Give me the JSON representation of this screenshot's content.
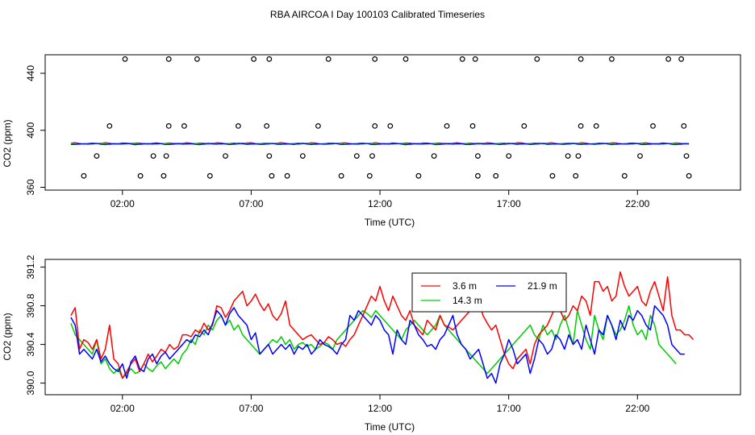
{
  "title": "RBA AIRCOA I  Day 100103  Calibrated Timeseries",
  "colors": {
    "red": "#ff0000",
    "green": "#00cc00",
    "blue": "#0000ff",
    "axis": "#000000"
  },
  "chart_data": [
    {
      "type": "scatter",
      "ylabel": "CO2 (ppm)",
      "xlabel": "Time (UTC)",
      "xlim": [
        -1.0,
        26.0
      ],
      "ylim": [
        358,
        453
      ],
      "xticks": [
        2,
        7,
        12,
        17,
        22
      ],
      "xtick_labels": [
        "02:00",
        "07:00",
        "12:00",
        "17:00",
        "22:00"
      ],
      "yticks": [
        360,
        400,
        440
      ],
      "ytick_labels": [
        "360",
        "400",
        "440"
      ],
      "circles": [
        [
          0.5,
          368
        ],
        [
          1.0,
          382
        ],
        [
          1.5,
          403
        ],
        [
          2.1,
          450
        ],
        [
          2.7,
          368
        ],
        [
          3.2,
          382
        ],
        [
          3.6,
          368
        ],
        [
          3.7,
          382
        ],
        [
          3.8,
          403
        ],
        [
          3.8,
          450
        ],
        [
          4.4,
          403
        ],
        [
          4.9,
          450
        ],
        [
          5.4,
          368
        ],
        [
          6.0,
          382
        ],
        [
          6.5,
          403
        ],
        [
          7.1,
          450
        ],
        [
          7.6,
          403
        ],
        [
          7.7,
          450
        ],
        [
          7.7,
          382
        ],
        [
          7.8,
          368
        ],
        [
          8.4,
          368
        ],
        [
          9.0,
          382
        ],
        [
          9.6,
          403
        ],
        [
          10.0,
          450
        ],
        [
          10.5,
          368
        ],
        [
          11.1,
          382
        ],
        [
          11.6,
          368
        ],
        [
          11.7,
          382
        ],
        [
          11.8,
          403
        ],
        [
          11.8,
          450
        ],
        [
          12.4,
          403
        ],
        [
          13.0,
          450
        ],
        [
          13.5,
          368
        ],
        [
          14.1,
          382
        ],
        [
          14.6,
          403
        ],
        [
          15.2,
          450
        ],
        [
          15.6,
          403
        ],
        [
          15.7,
          450
        ],
        [
          15.8,
          382
        ],
        [
          15.8,
          368
        ],
        [
          16.5,
          368
        ],
        [
          17.0,
          382
        ],
        [
          17.6,
          403
        ],
        [
          18.1,
          450
        ],
        [
          18.7,
          368
        ],
        [
          19.3,
          382
        ],
        [
          19.6,
          368
        ],
        [
          19.7,
          382
        ],
        [
          19.8,
          403
        ],
        [
          19.8,
          450
        ],
        [
          20.4,
          403
        ],
        [
          21.0,
          450
        ],
        [
          21.5,
          368
        ],
        [
          22.1,
          382
        ],
        [
          22.6,
          403
        ],
        [
          23.2,
          450
        ],
        [
          23.7,
          450
        ],
        [
          23.8,
          403
        ],
        [
          23.9,
          382
        ],
        [
          24.0,
          368
        ]
      ],
      "series": [
        {
          "name": "3.6 m",
          "color": "#ff0000",
          "level": 390.8
        },
        {
          "name": "14.3 m",
          "color": "#00cc00",
          "level": 390.5
        },
        {
          "name": "21.9 m",
          "color": "#0000ff",
          "level": 390.4
        }
      ]
    },
    {
      "type": "line",
      "ylabel": "CO2 (ppm)",
      "xlabel": "Time (UTC)",
      "xlim": [
        -1.0,
        26.0
      ],
      "ylim": [
        389.88,
        391.28
      ],
      "xticks": [
        2,
        7,
        12,
        17,
        22
      ],
      "xtick_labels": [
        "02:00",
        "07:00",
        "12:00",
        "17:00",
        "22:00"
      ],
      "yticks": [
        390.0,
        390.4,
        390.8,
        391.2
      ],
      "ytick_labels": [
        "390.0",
        "390.4",
        "390.8",
        "391.2"
      ],
      "x_start": 0,
      "x_step": 0.16667,
      "legend": {
        "position": "top-center",
        "entries": [
          "3.6 m",
          "21.9 m",
          "14.3 m"
        ]
      },
      "series": [
        {
          "name": "3.6 m",
          "color": "#ff0000",
          "values": [
            390.7,
            390.78,
            390.35,
            390.45,
            390.42,
            390.35,
            390.45,
            390.25,
            390.35,
            390.6,
            390.25,
            390.2,
            390.05,
            390.12,
            390.2,
            390.25,
            390.12,
            390.2,
            390.3,
            390.22,
            390.28,
            390.35,
            390.32,
            390.4,
            390.35,
            390.38,
            390.5,
            390.5,
            390.48,
            390.55,
            390.52,
            390.62,
            390.55,
            390.6,
            390.8,
            390.78,
            390.68,
            390.75,
            390.85,
            390.9,
            390.95,
            390.8,
            390.85,
            390.92,
            390.82,
            390.75,
            390.82,
            390.7,
            390.65,
            390.72,
            390.85,
            390.6,
            390.55,
            390.5,
            390.45,
            390.48,
            390.5,
            390.45,
            390.4,
            390.42,
            390.48,
            390.45,
            390.4,
            390.42,
            390.38,
            390.45,
            390.5,
            390.6,
            390.7,
            390.8,
            390.9,
            390.85,
            391.0,
            390.85,
            390.75,
            390.9,
            390.8,
            390.7,
            390.65,
            390.75,
            390.6,
            390.55,
            390.5,
            390.65,
            390.6,
            390.55,
            390.7,
            390.6,
            390.58,
            390.55,
            390.6,
            390.65,
            390.7,
            390.75,
            390.9,
            390.85,
            390.7,
            390.62,
            390.55,
            390.6,
            390.45,
            390.3,
            390.2,
            390.15,
            390.25,
            390.3,
            390.35,
            390.2,
            390.4,
            390.5,
            390.55,
            390.6,
            390.7,
            390.8,
            390.75,
            390.65,
            390.7,
            390.8,
            390.75,
            390.9,
            390.85,
            390.7,
            391.05,
            391.05,
            390.95,
            391.0,
            390.85,
            390.9,
            391.15,
            391.0,
            390.9,
            390.95,
            391.0,
            390.85,
            390.8,
            390.95,
            391.05,
            390.9,
            390.75,
            391.1,
            390.7,
            390.55,
            390.55,
            390.5,
            390.5,
            390.45
          ]
        },
        {
          "name": "14.3 m",
          "color": "#00cc00",
          "values": [
            390.62,
            390.5,
            390.45,
            390.4,
            390.35,
            390.3,
            390.45,
            390.2,
            390.25,
            390.15,
            390.1,
            390.15,
            390.05,
            390.1,
            390.15,
            390.1,
            390.12,
            390.2,
            390.15,
            390.12,
            390.18,
            390.22,
            390.15,
            390.2,
            390.25,
            390.2,
            390.3,
            390.35,
            390.45,
            390.4,
            390.55,
            390.5,
            390.6,
            390.55,
            390.65,
            390.7,
            390.6,
            390.65,
            390.55,
            390.6,
            390.5,
            390.45,
            390.4,
            390.35,
            390.3,
            390.35,
            390.4,
            390.45,
            390.42,
            390.48,
            390.4,
            390.45,
            390.35,
            390.4,
            390.42,
            390.38,
            390.4,
            390.35,
            390.38,
            390.42,
            390.4,
            390.35,
            390.45,
            390.5,
            390.55,
            390.6,
            390.65,
            390.7,
            390.75,
            390.72,
            390.68,
            390.75,
            390.7,
            390.65,
            390.6,
            390.55,
            390.5,
            390.45,
            390.55,
            390.6,
            390.65,
            390.6,
            390.55,
            390.5,
            390.55,
            390.6,
            390.7,
            390.6,
            390.55,
            390.5,
            390.45,
            390.4,
            390.35,
            390.3,
            390.25,
            390.2,
            390.15,
            390.1,
            390.15,
            390.2,
            390.25,
            390.3,
            390.35,
            390.4,
            390.45,
            390.5,
            390.55,
            390.6,
            390.5,
            390.45,
            390.6,
            390.5,
            390.55,
            390.45,
            390.6,
            390.7,
            390.55,
            390.4,
            390.75,
            390.6,
            390.45,
            390.35,
            390.7,
            390.55,
            390.45,
            390.7,
            390.6,
            390.5,
            390.55,
            390.65,
            390.8,
            390.6,
            390.5,
            390.55,
            390.45,
            390.7,
            390.6,
            390.4,
            390.35,
            390.3,
            390.25,
            390.2
          ]
        },
        {
          "name": "21.9 m",
          "color": "#0000ff",
          "values": [
            390.68,
            390.6,
            390.3,
            390.35,
            390.3,
            390.25,
            390.35,
            390.22,
            390.28,
            390.2,
            390.15,
            390.12,
            390.2,
            390.05,
            390.22,
            390.28,
            390.15,
            390.12,
            390.25,
            390.3,
            390.2,
            390.28,
            390.32,
            390.25,
            390.3,
            390.35,
            390.4,
            390.45,
            390.42,
            390.5,
            390.48,
            390.55,
            390.5,
            390.62,
            390.75,
            390.7,
            390.6,
            390.72,
            390.78,
            390.7,
            390.65,
            390.6,
            390.45,
            390.52,
            390.3,
            390.35,
            390.4,
            390.3,
            390.35,
            390.4,
            390.35,
            390.4,
            390.3,
            390.38,
            390.35,
            390.4,
            390.3,
            390.35,
            390.45,
            390.4,
            390.38,
            390.35,
            390.3,
            390.4,
            390.45,
            390.7,
            390.65,
            390.75,
            390.7,
            390.65,
            390.6,
            390.7,
            390.65,
            390.55,
            390.5,
            390.3,
            390.55,
            390.45,
            390.4,
            390.65,
            390.6,
            390.5,
            390.45,
            390.38,
            390.4,
            390.35,
            390.45,
            390.5,
            390.6,
            390.7,
            390.5,
            390.4,
            390.35,
            390.25,
            390.3,
            390.35,
            390.2,
            390.05,
            390.1,
            390.0,
            390.2,
            390.3,
            390.45,
            390.35,
            390.2,
            390.25,
            390.3,
            390.1,
            390.25,
            390.45,
            390.4,
            390.3,
            390.35,
            390.5,
            390.45,
            390.35,
            390.5,
            390.4,
            390.45,
            390.35,
            390.6,
            390.45,
            390.3,
            390.55,
            390.5,
            390.7,
            390.6,
            390.45,
            390.65,
            390.55,
            390.7,
            390.65,
            390.75,
            390.7,
            390.6,
            390.55,
            390.8,
            390.75,
            390.7,
            390.6,
            390.4,
            390.35,
            390.3,
            390.3
          ]
        }
      ]
    }
  ]
}
